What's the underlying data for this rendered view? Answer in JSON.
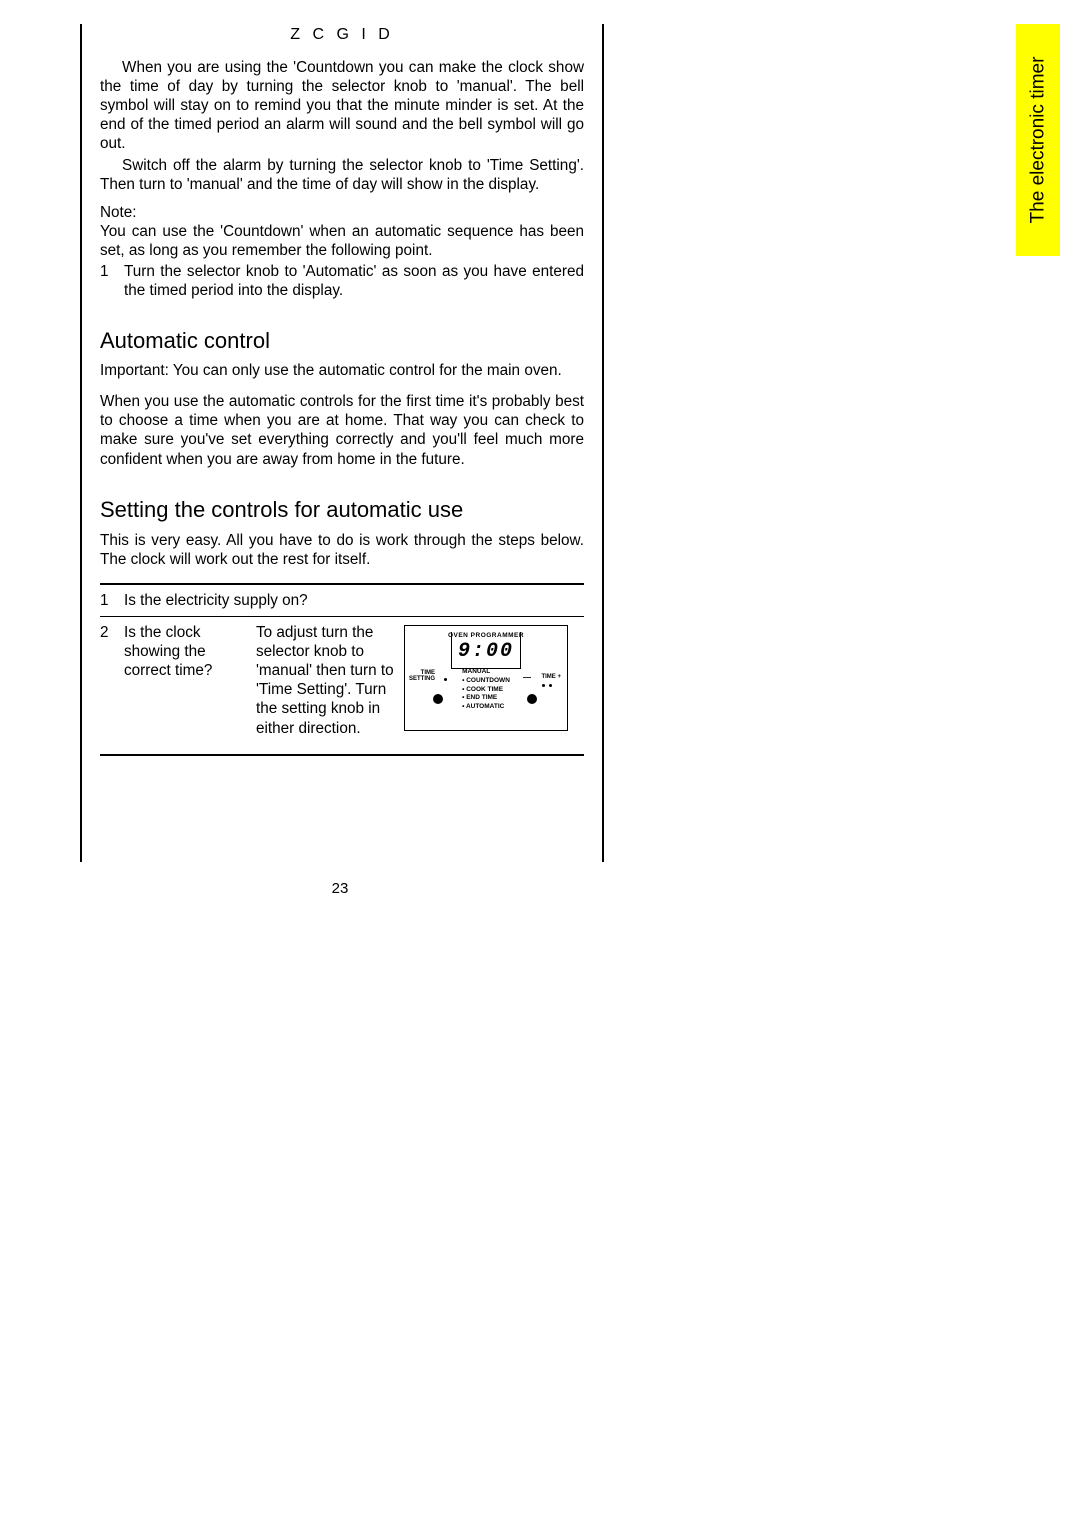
{
  "header_code": "Z C G   I D",
  "tab_label": "The electronic timer",
  "page_number": "23",
  "para1": "When you are using the 'Countdown you can make the clock show the time of day by turning the selector knob to 'manual'. The bell symbol will stay on to remind you that the minute minder is set. At the end of the timed period an alarm will sound and the bell symbol will go out.",
  "para2": "Switch off the alarm by turning the selector knob to 'Time Setting'. Then turn to 'manual' and the time of day will show in the display.",
  "note_label": "Note:",
  "note_body": "You can use the 'Countdown' when an automatic sequence has been set, as long as you remember the following point.",
  "note_list_1_num": "1",
  "note_list_1": "Turn the selector knob to 'Automatic' as soon as you have entered the timed period into the display.",
  "h2_auto": "Automatic control",
  "important_prefix": "Important:",
  "important_body": " You can only use the automatic control for the main oven.",
  "auto_para": "When you use the automatic controls for the first time it's probably best to choose a time when you are at home. That way you can check to make sure you've set everything correctly and you'll feel much more confident when you are away from home in the future.",
  "h2_setting": "Setting the controls for automatic use",
  "setting_para": "This is very easy. All you have to do is work through the steps below. The clock will work out the rest for itself.",
  "steps": {
    "s1_num": "1",
    "s1_q": "Is the electricity supply on?",
    "s2_num": "2",
    "s2_q": "Is the clock showing the correct time?",
    "s2_a": "To adjust turn the selector knob to 'manual' then turn to 'Time Setting'. Turn the setting knob in either direction."
  },
  "programmer": {
    "title": "OVEN PROGRAMMER",
    "time": "9:00",
    "left_line1": "TIME",
    "left_line2": "SETTING",
    "right_label": "TIME",
    "minus": "—",
    "plus": "+",
    "menu": {
      "m1": "MANUAL",
      "m2": "COUNTDOWN",
      "m3": "COOK TIME",
      "m4": "END TIME",
      "m5": "AUTOMATIC"
    }
  },
  "colors": {
    "tab_bg": "#ffff00",
    "text": "#000000",
    "page_bg": "#ffffff"
  }
}
